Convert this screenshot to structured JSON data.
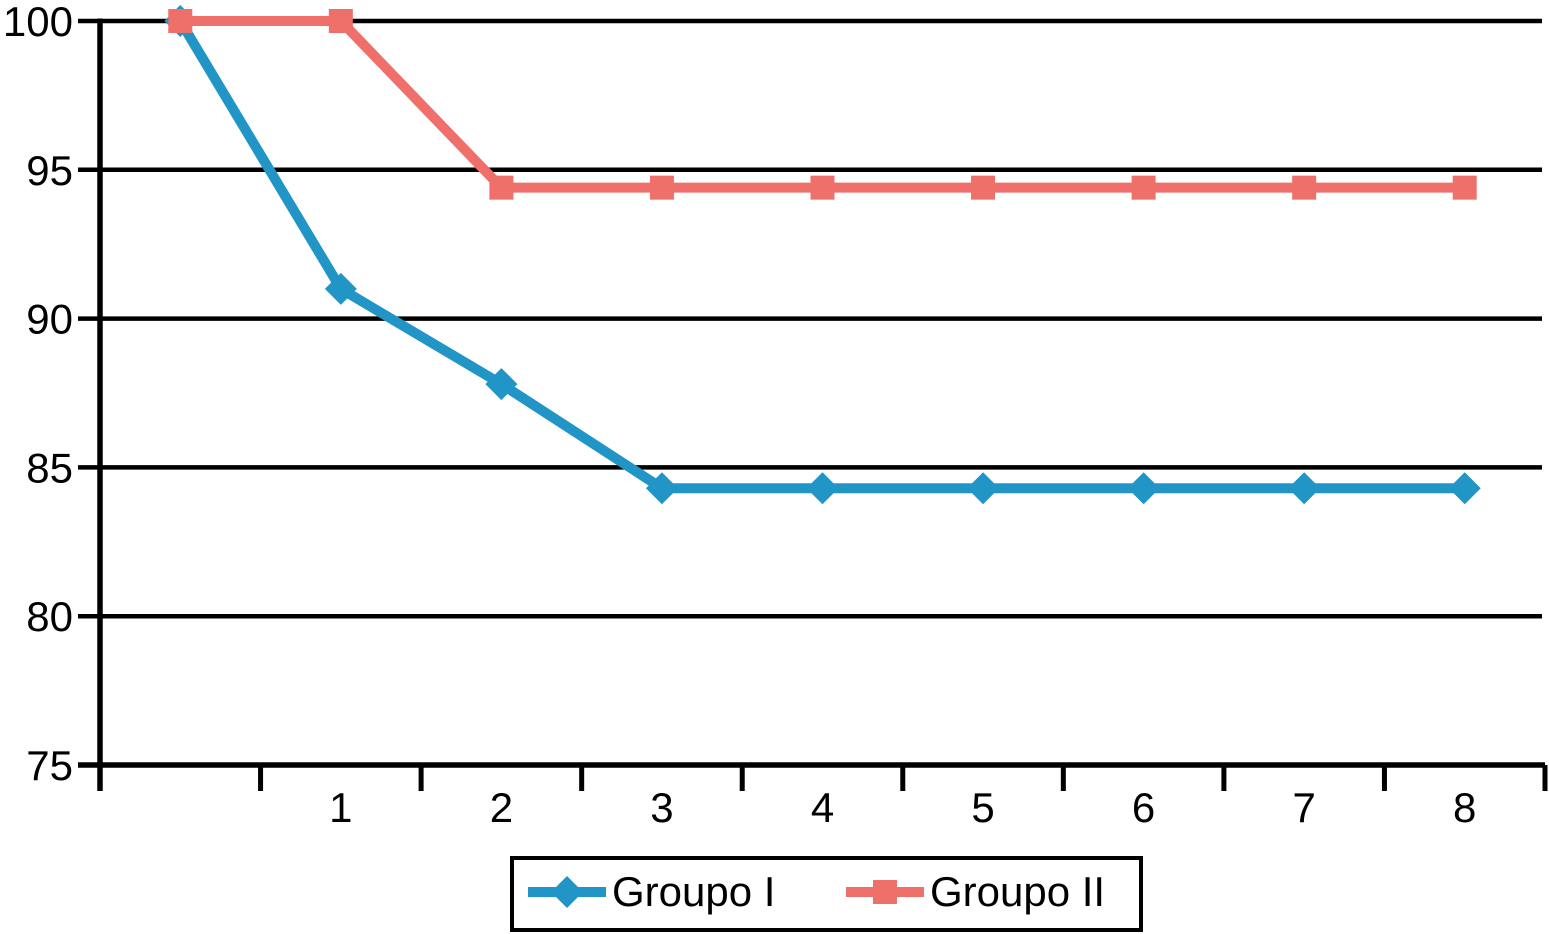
{
  "chart_data": {
    "type": "line",
    "categories": [
      "",
      "1",
      "2",
      "3",
      "4",
      "5",
      "6",
      "7",
      "8"
    ],
    "series": [
      {
        "name": "Groupo I",
        "marker": "diamond",
        "color": "#2295c7",
        "values": [
          100,
          91,
          87.8,
          84.3,
          84.3,
          84.3,
          84.3,
          84.3,
          84.3
        ]
      },
      {
        "name": "Groupo II",
        "marker": "square",
        "color": "#ef6f6b",
        "values": [
          100,
          100,
          94.4,
          94.4,
          94.4,
          94.4,
          94.4,
          94.4,
          94.4
        ]
      }
    ],
    "title": "",
    "xlabel": "",
    "ylabel": "",
    "ylim": [
      75,
      100
    ],
    "y_ticks": [
      75,
      80,
      85,
      90,
      95,
      100
    ],
    "grid": true,
    "gridline_color": "#000000",
    "axis_color": "#000000",
    "legend_position": "bottom-center"
  }
}
